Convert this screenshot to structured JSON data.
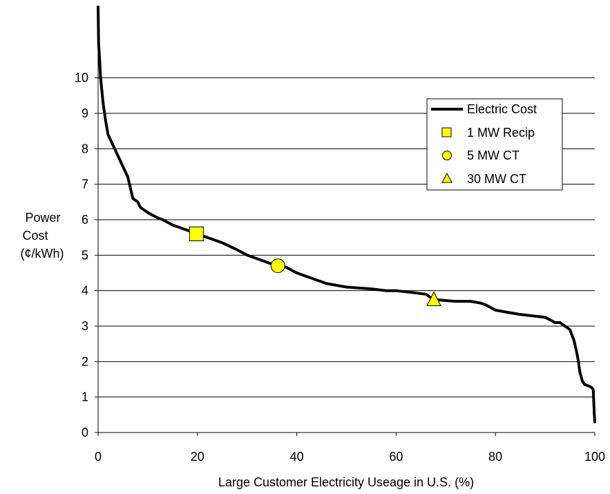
{
  "chart_data": {
    "type": "line",
    "title": "",
    "xlabel": "Large Customer Electricity Useage in U.S. (%)",
    "ylabel_lines": [
      "Power",
      "Cost",
      "(¢/kWh)"
    ],
    "xlim": [
      0,
      100
    ],
    "ylim": [
      0,
      12
    ],
    "x_ticks": [
      0,
      20,
      40,
      60,
      80,
      100
    ],
    "y_ticks": [
      0,
      1,
      2,
      3,
      4,
      5,
      6,
      7,
      8,
      9,
      10
    ],
    "grid": "horizontal",
    "legend_position": "top-right",
    "series": [
      {
        "name": "Electric Cost",
        "color": "#000000",
        "x": [
          0,
          0.1,
          0.3,
          0.5,
          1,
          1.5,
          2,
          3,
          4,
          5,
          6,
          6.5,
          7,
          8,
          8.5,
          9,
          10,
          12,
          13,
          15,
          17,
          20,
          22,
          25,
          28,
          30,
          33,
          35,
          36.5,
          38,
          40,
          43,
          46,
          50,
          55,
          58,
          60,
          63,
          66,
          67.5,
          70,
          72,
          75,
          77,
          78,
          80,
          82,
          85,
          88,
          90,
          92,
          93,
          95,
          95.8,
          96.3,
          96.7,
          97,
          97.5,
          98,
          99,
          99.5,
          99.7,
          99.8,
          99.9,
          100
        ],
        "values": [
          12,
          11,
          10.5,
          10.0,
          9.3,
          8.8,
          8.4,
          8.1,
          7.8,
          7.5,
          7.2,
          6.9,
          6.6,
          6.5,
          6.35,
          6.3,
          6.2,
          6.05,
          6.0,
          5.85,
          5.75,
          5.6,
          5.5,
          5.35,
          5.15,
          5.0,
          4.85,
          4.75,
          4.72,
          4.65,
          4.5,
          4.35,
          4.2,
          4.1,
          4.05,
          4.0,
          4.0,
          3.95,
          3.9,
          3.75,
          3.72,
          3.7,
          3.7,
          3.65,
          3.6,
          3.45,
          3.4,
          3.33,
          3.28,
          3.25,
          3.1,
          3.1,
          2.9,
          2.6,
          2.3,
          2.0,
          1.7,
          1.45,
          1.35,
          1.3,
          1.25,
          1.2,
          0.8,
          0.5,
          0.3
        ]
      }
    ],
    "markers": [
      {
        "name": "1 MW Recip",
        "shape": "square",
        "x": 19.8,
        "y": 5.6,
        "color": "#ffff00"
      },
      {
        "name": "5 MW CT",
        "shape": "circle",
        "x": 36.2,
        "y": 4.7,
        "color": "#ffff00"
      },
      {
        "name": "30 MW CT",
        "shape": "triangle",
        "x": 67.6,
        "y": 3.75,
        "color": "#ffff00"
      }
    ]
  }
}
